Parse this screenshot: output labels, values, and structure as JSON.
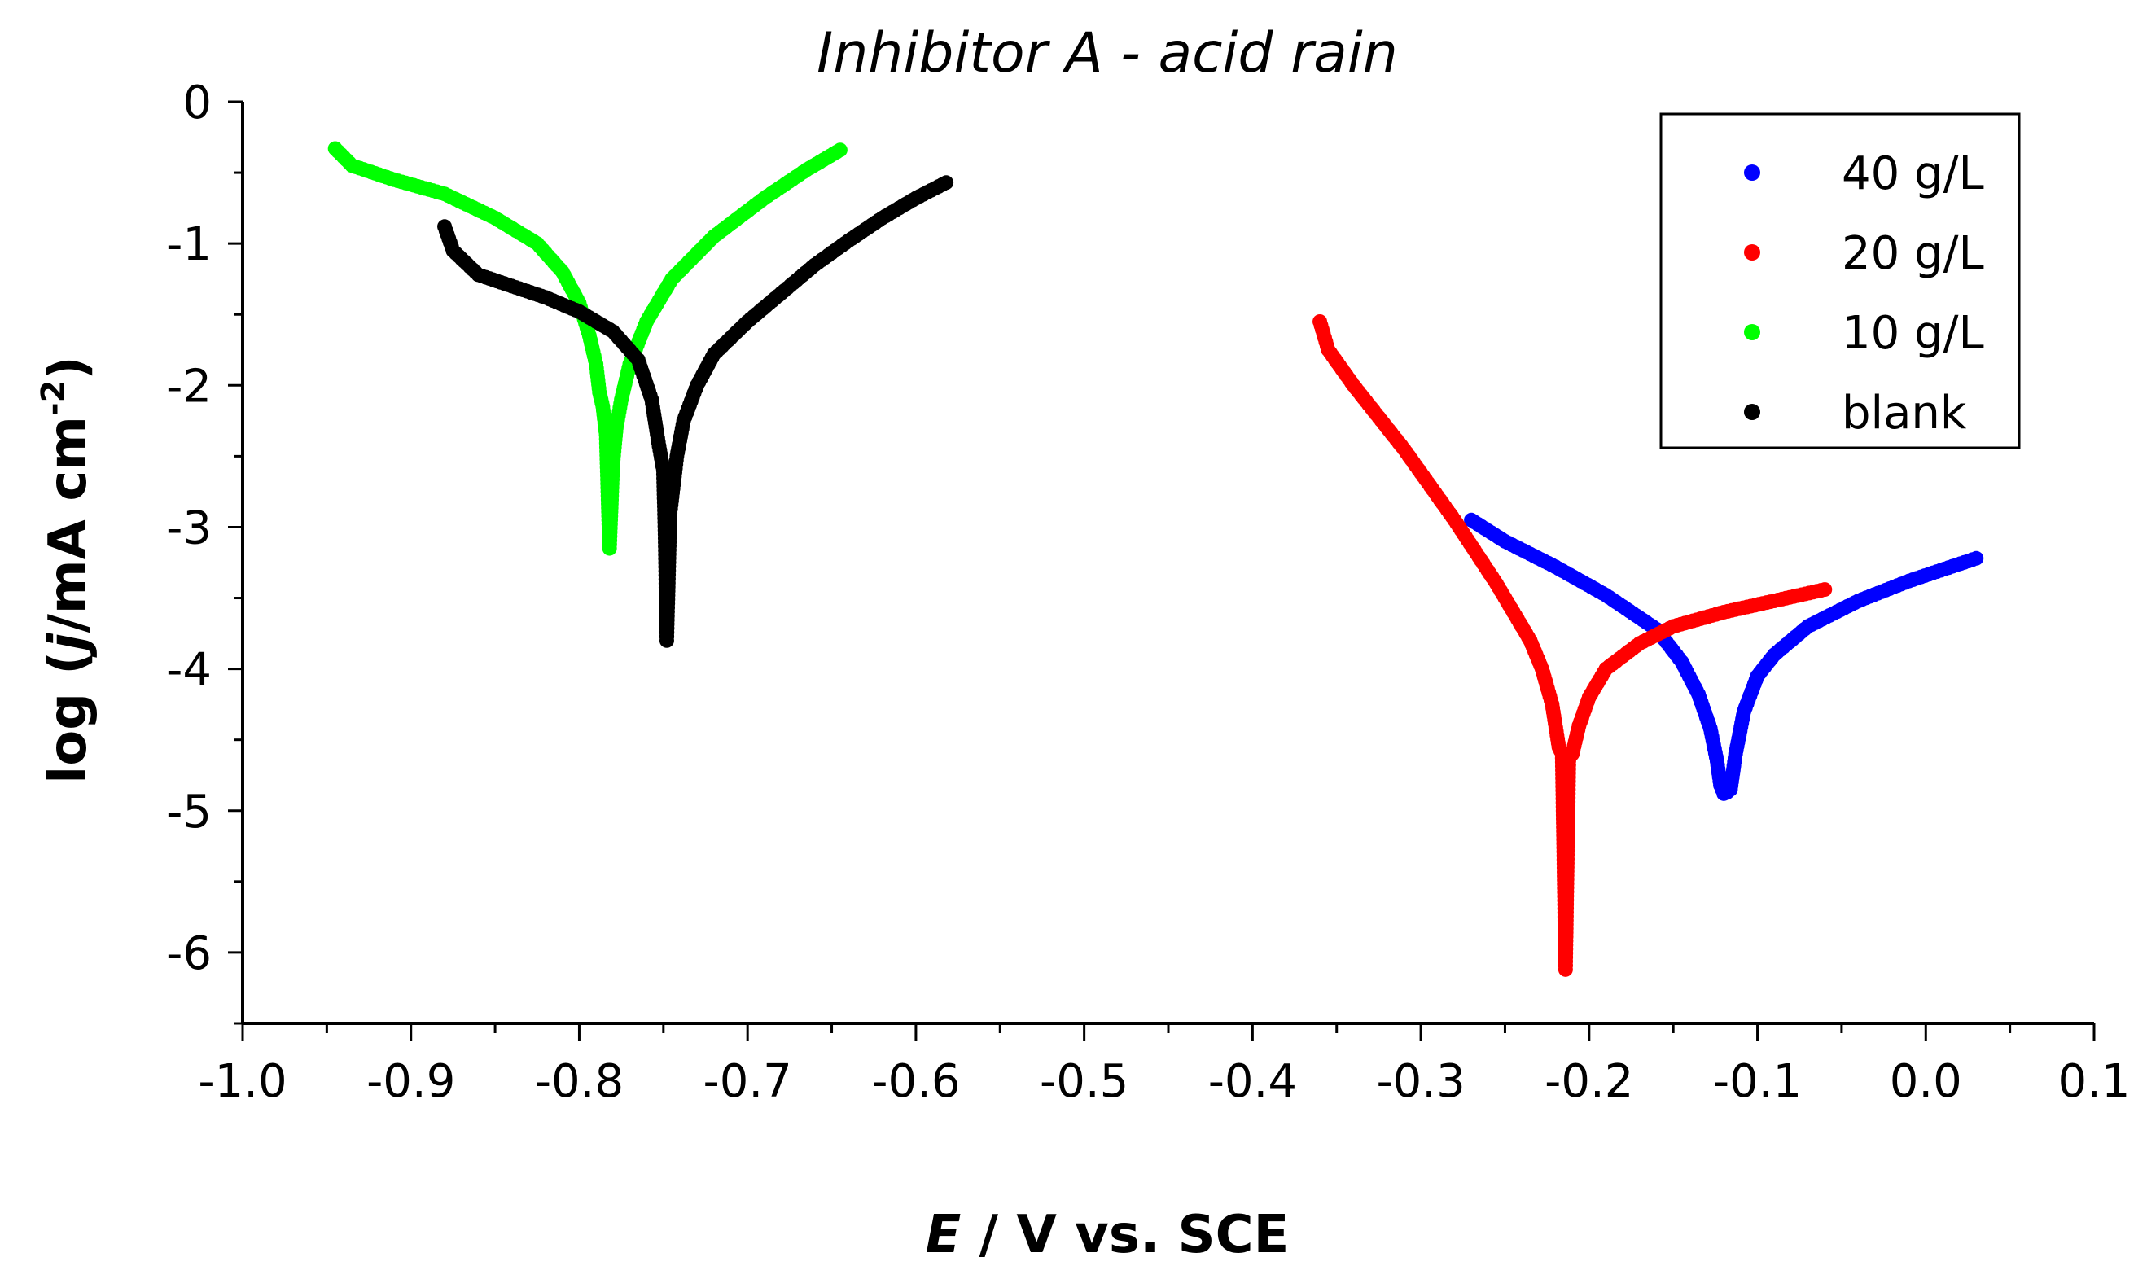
{
  "chart_data": {
    "type": "scatter",
    "title": "Inhibitor A - acid rain",
    "xlabel": {
      "italic": "E",
      "rest": " / V vs. SCE"
    },
    "ylabel": {
      "pre": "log (",
      "italic": "j",
      "post": "/mA cm",
      "sup": "-2",
      "close": ")"
    },
    "xlim": [
      -1.0,
      0.1
    ],
    "ylim": [
      -6.5,
      0
    ],
    "xticks": [
      -1.0,
      -0.9,
      -0.8,
      -0.7,
      -0.6,
      -0.5,
      -0.4,
      -0.3,
      -0.2,
      -0.1,
      0.0,
      0.1
    ],
    "xtick_labels": [
      "-1.0",
      "-0.9",
      "-0.8",
      "-0.7",
      "-0.6",
      "-0.5",
      "-0.4",
      "-0.3",
      "-0.2",
      "-0.1",
      "0.0",
      "0.1"
    ],
    "yticks": [
      0,
      -1,
      -2,
      -3,
      -4,
      -5,
      -6
    ],
    "ytick_labels": [
      "0",
      "-1",
      "-2",
      "-3",
      "-4",
      "-5",
      "-6"
    ],
    "legend_position": "top-right",
    "series": [
      {
        "name": "40 g/L",
        "color": "#0000ff",
        "x": [
          -0.27,
          -0.25,
          -0.22,
          -0.19,
          -0.16,
          -0.145,
          -0.135,
          -0.128,
          -0.124,
          -0.122,
          -0.12,
          -0.118,
          -0.116,
          -0.113,
          -0.108,
          -0.1,
          -0.09,
          -0.07,
          -0.04,
          -0.01,
          0.03
        ],
        "y": [
          -2.95,
          -3.1,
          -3.28,
          -3.48,
          -3.72,
          -3.95,
          -4.18,
          -4.42,
          -4.65,
          -4.82,
          -4.88,
          -4.87,
          -4.85,
          -4.6,
          -4.3,
          -4.05,
          -3.9,
          -3.7,
          -3.52,
          -3.38,
          -3.22
        ]
      },
      {
        "name": "20 g/L",
        "color": "#ff0000",
        "x": [
          -0.36,
          -0.355,
          -0.34,
          -0.31,
          -0.28,
          -0.255,
          -0.235,
          -0.228,
          -0.222,
          -0.218,
          -0.216,
          -0.214,
          -0.212,
          -0.21,
          -0.206,
          -0.2,
          -0.19,
          -0.17,
          -0.15,
          -0.12,
          -0.09,
          -0.06
        ],
        "y": [
          -1.55,
          -1.75,
          -2.0,
          -2.45,
          -2.95,
          -3.4,
          -3.8,
          -4.0,
          -4.25,
          -4.55,
          -4.6,
          -6.12,
          -4.62,
          -4.6,
          -4.4,
          -4.2,
          -4.0,
          -3.82,
          -3.7,
          -3.6,
          -3.52,
          -3.44
        ]
      },
      {
        "name": "10 g/L",
        "color": "#00ff00",
        "x": [
          -0.945,
          -0.935,
          -0.91,
          -0.88,
          -0.85,
          -0.825,
          -0.81,
          -0.8,
          -0.794,
          -0.79,
          -0.788,
          -0.786,
          -0.784,
          -0.782,
          -0.78,
          -0.778,
          -0.775,
          -0.77,
          -0.76,
          -0.745,
          -0.72,
          -0.69,
          -0.665,
          -0.645
        ],
        "y": [
          -0.33,
          -0.45,
          -0.55,
          -0.65,
          -0.82,
          -1.0,
          -1.2,
          -1.42,
          -1.65,
          -1.85,
          -2.05,
          -2.15,
          -2.35,
          -3.15,
          -2.55,
          -2.3,
          -2.1,
          -1.85,
          -1.55,
          -1.25,
          -0.95,
          -0.68,
          -0.48,
          -0.34
        ]
      },
      {
        "name": "blank",
        "color": "#000000",
        "x": [
          -0.88,
          -0.875,
          -0.86,
          -0.84,
          -0.82,
          -0.8,
          -0.78,
          -0.765,
          -0.757,
          -0.753,
          -0.75,
          -0.749,
          -0.748,
          -0.746,
          -0.744,
          -0.742,
          -0.738,
          -0.73,
          -0.72,
          -0.7,
          -0.68,
          -0.66,
          -0.64,
          -0.62,
          -0.6,
          -0.582
        ],
        "y": [
          -0.88,
          -1.05,
          -1.22,
          -1.3,
          -1.38,
          -1.48,
          -1.62,
          -1.82,
          -2.1,
          -2.4,
          -2.6,
          -3.05,
          -3.8,
          -2.9,
          -2.7,
          -2.5,
          -2.25,
          -2.0,
          -1.78,
          -1.55,
          -1.35,
          -1.15,
          -0.98,
          -0.82,
          -0.68,
          -0.57
        ]
      }
    ]
  }
}
